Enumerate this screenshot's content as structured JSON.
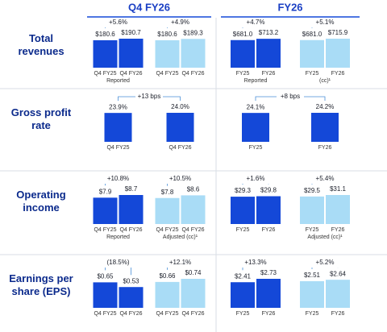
{
  "headers": [
    "Q4 FY26",
    "FY26"
  ],
  "chart_data": [
    {
      "type": "bar",
      "row_label": "Total revenues",
      "panels": [
        {
          "groups": [
            {
              "categories": [
                "Q4 FY25",
                "Q4 FY26"
              ],
              "values": [
                180.6,
                190.7
              ],
              "value_labels": [
                "$180.6",
                "$190.7"
              ],
              "change": "+5.6%",
              "label": "Reported",
              "color": "#1448d8"
            },
            {
              "categories": [
                "Q4 FY25",
                "Q4 FY26"
              ],
              "values": [
                180.6,
                189.3
              ],
              "value_labels": [
                "$180.6",
                "$189.3"
              ],
              "change": "+4.9%",
              "color": "#a9dcf6"
            }
          ]
        },
        {
          "groups": [
            {
              "categories": [
                "FY25",
                "FY26"
              ],
              "values": [
                681.0,
                713.2
              ],
              "value_labels": [
                "$681.0",
                "$713.2"
              ],
              "change": "+4.7%",
              "label": "Reported",
              "color": "#1448d8"
            },
            {
              "categories": [
                "FY25",
                "FY26"
              ],
              "values": [
                681.0,
                715.9
              ],
              "value_labels": [
                "$681.0",
                "$715.9"
              ],
              "change": "+5.1%",
              "label": "(cc)¹",
              "color": "#a9dcf6"
            }
          ]
        }
      ]
    },
    {
      "type": "bar",
      "row_label": "Gross profit rate",
      "panels": [
        {
          "groups": [
            {
              "categories": [
                "Q4 FY25",
                "Q4 FY26"
              ],
              "values": [
                23.9,
                24.0
              ],
              "value_labels": [
                "23.9%",
                "24.0%"
              ],
              "change": "+13 bps",
              "color": "#1448d8"
            }
          ]
        },
        {
          "groups": [
            {
              "categories": [
                "FY25",
                "FY26"
              ],
              "values": [
                24.1,
                24.2
              ],
              "value_labels": [
                "24.1%",
                "24.2%"
              ],
              "change": "+8 bps",
              "color": "#1448d8"
            }
          ]
        }
      ]
    },
    {
      "type": "bar",
      "row_label": "Operating income",
      "panels": [
        {
          "groups": [
            {
              "categories": [
                "Q4 FY25",
                "Q4 FY26"
              ],
              "values": [
                7.9,
                8.7
              ],
              "value_labels": [
                "$7.9",
                "$8.7"
              ],
              "change": "+10.8%",
              "label": "Reported",
              "color": "#1448d8"
            },
            {
              "categories": [
                "Q4 FY25",
                "Q4 FY26"
              ],
              "values": [
                7.8,
                8.6
              ],
              "value_labels": [
                "$7.8",
                "$8.6"
              ],
              "change": "+10.5%",
              "label": "Adjusted (cc)¹",
              "color": "#a9dcf6"
            }
          ]
        },
        {
          "groups": [
            {
              "categories": [
                "FY25",
                "FY26"
              ],
              "values": [
                29.3,
                29.8
              ],
              "value_labels": [
                "$29.3",
                "$29.8"
              ],
              "change": "+1.6%",
              "color": "#1448d8"
            },
            {
              "categories": [
                "FY25",
                "FY26"
              ],
              "values": [
                29.5,
                31.1
              ],
              "value_labels": [
                "$29.5",
                "$31.1"
              ],
              "change": "+5.4%",
              "label": "Adjusted (cc)¹",
              "color": "#a9dcf6"
            }
          ]
        }
      ]
    },
    {
      "type": "bar",
      "row_label": "Earnings per share (EPS)",
      "panels": [
        {
          "groups": [
            {
              "categories": [
                "Q4 FY25",
                "Q4 FY26"
              ],
              "values": [
                0.65,
                0.53
              ],
              "value_labels": [
                "$0.65",
                "$0.53"
              ],
              "change": "(18.5%)",
              "color": "#1448d8"
            },
            {
              "categories": [
                "Q4 FY25",
                "Q4 FY26"
              ],
              "values": [
                0.66,
                0.74
              ],
              "value_labels": [
                "$0.66",
                "$0.74"
              ],
              "change": "+12.1%",
              "color": "#a9dcf6"
            }
          ]
        },
        {
          "groups": [
            {
              "categories": [
                "FY25",
                "FY26"
              ],
              "values": [
                2.41,
                2.73
              ],
              "value_labels": [
                "$2.41",
                "$2.73"
              ],
              "change": "+13.3%",
              "color": "#1448d8"
            },
            {
              "categories": [
                "FY25",
                "FY26"
              ],
              "values": [
                2.51,
                2.64
              ],
              "value_labels": [
                "$2.51",
                "$2.64"
              ],
              "change": "+5.2%",
              "color": "#a9dcf6"
            }
          ]
        }
      ]
    }
  ]
}
